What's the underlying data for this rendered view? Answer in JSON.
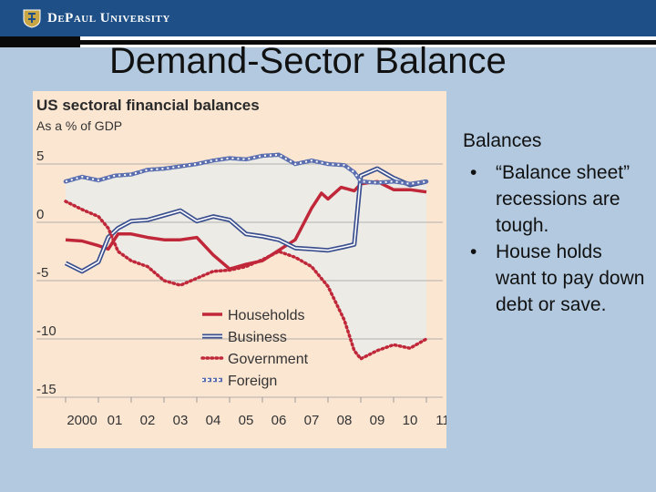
{
  "header": {
    "university_name": "DePaul University",
    "colors": {
      "bar": "#1e4f86",
      "stripe": "#0a0a0a"
    }
  },
  "slide": {
    "title": "Demand-Sector Balance",
    "side_heading": "Balances",
    "bullets": [
      "“Balance sheet” recessions are tough.",
      "House holds want to pay down debt or save."
    ]
  },
  "chart_data": {
    "type": "line",
    "title": "US sectoral financial balances",
    "subtitle": "As a % of GDP",
    "x_range": [
      2000,
      2011.5
    ],
    "ylim": [
      -15,
      5
    ],
    "y_ticks": [
      5,
      0,
      -5,
      -10,
      -15
    ],
    "x_tick_labels": [
      "2000",
      "01",
      "02",
      "03",
      "04",
      "05",
      "06",
      "07",
      "08",
      "09",
      "10",
      "11"
    ],
    "legend_position": "lower-center",
    "series": [
      {
        "name": "Households",
        "color": "#c0283a",
        "style": "solid",
        "points": [
          [
            2000,
            -1.5
          ],
          [
            2000.5,
            -1.6
          ],
          [
            2001,
            -2
          ],
          [
            2001.3,
            -2.3
          ],
          [
            2001.6,
            -1
          ],
          [
            2002,
            -1
          ],
          [
            2002.5,
            -1.3
          ],
          [
            2003,
            -1.5
          ],
          [
            2003.5,
            -1.5
          ],
          [
            2004,
            -1.3
          ],
          [
            2004.5,
            -2.8
          ],
          [
            2005,
            -4
          ],
          [
            2005.5,
            -3.6
          ],
          [
            2006,
            -3.3
          ],
          [
            2006.5,
            -2.4
          ],
          [
            2007,
            -1.5
          ],
          [
            2007.5,
            1.2
          ],
          [
            2007.8,
            2.5
          ],
          [
            2008,
            2
          ],
          [
            2008.4,
            3
          ],
          [
            2008.8,
            2.7
          ],
          [
            2009,
            3.3
          ],
          [
            2009.5,
            3.5
          ],
          [
            2010,
            2.8
          ],
          [
            2010.5,
            2.8
          ],
          [
            2011,
            2.6
          ]
        ]
      },
      {
        "name": "Business",
        "color": "#3b4f8f",
        "style": "double",
        "points": [
          [
            2000,
            -3.5
          ],
          [
            2000.5,
            -4.2
          ],
          [
            2001,
            -3.4
          ],
          [
            2001.3,
            -1.3
          ],
          [
            2001.6,
            -0.5
          ],
          [
            2002,
            0.1
          ],
          [
            2002.5,
            0.2
          ],
          [
            2003,
            0.6
          ],
          [
            2003.5,
            1
          ],
          [
            2004,
            0.1
          ],
          [
            2004.5,
            0.5
          ],
          [
            2005,
            0.2
          ],
          [
            2005.5,
            -1
          ],
          [
            2006,
            -1.2
          ],
          [
            2006.5,
            -1.5
          ],
          [
            2007,
            -2.2
          ],
          [
            2007.5,
            -2.3
          ],
          [
            2008,
            -2.4
          ],
          [
            2008.5,
            -2.1
          ],
          [
            2008.8,
            -1.9
          ],
          [
            2009,
            4
          ],
          [
            2009.5,
            4.6
          ],
          [
            2010,
            3.8
          ],
          [
            2010.5,
            3.2
          ],
          [
            2011,
            3.5
          ]
        ]
      },
      {
        "name": "Government",
        "color": "#c0283a",
        "style": "dotted",
        "points": [
          [
            2000,
            1.8
          ],
          [
            2000.5,
            1.1
          ],
          [
            2001,
            0.5
          ],
          [
            2001.3,
            -0.5
          ],
          [
            2001.6,
            -2.5
          ],
          [
            2002,
            -3.3
          ],
          [
            2002.5,
            -3.8
          ],
          [
            2003,
            -5
          ],
          [
            2003.5,
            -5.4
          ],
          [
            2004,
            -4.8
          ],
          [
            2004.5,
            -4.2
          ],
          [
            2005,
            -4.1
          ],
          [
            2005.5,
            -3.8
          ],
          [
            2006,
            -3.2
          ],
          [
            2006.5,
            -2.5
          ],
          [
            2007,
            -3
          ],
          [
            2007.5,
            -3.8
          ],
          [
            2008,
            -5.5
          ],
          [
            2008.5,
            -8.4
          ],
          [
            2008.8,
            -11
          ],
          [
            2009,
            -11.7
          ],
          [
            2009.5,
            -11
          ],
          [
            2010,
            -10.5
          ],
          [
            2010.5,
            -10.8
          ],
          [
            2011,
            -10
          ]
        ]
      },
      {
        "name": "Foreign",
        "color": "#5b6fb0",
        "style": "hollow-dots",
        "points": [
          [
            2000,
            3.5
          ],
          [
            2000.5,
            3.9
          ],
          [
            2001,
            3.6
          ],
          [
            2001.5,
            4
          ],
          [
            2002,
            4.1
          ],
          [
            2002.5,
            4.5
          ],
          [
            2003,
            4.6
          ],
          [
            2003.5,
            4.8
          ],
          [
            2004,
            5
          ],
          [
            2004.5,
            5.3
          ],
          [
            2005,
            5.5
          ],
          [
            2005.5,
            5.4
          ],
          [
            2006,
            5.7
          ],
          [
            2006.5,
            5.8
          ],
          [
            2007,
            5
          ],
          [
            2007.5,
            5.3
          ],
          [
            2008,
            5
          ],
          [
            2008.5,
            4.9
          ],
          [
            2008.8,
            4.3
          ],
          [
            2009,
            3.5
          ],
          [
            2009.5,
            3.4
          ],
          [
            2010,
            3.5
          ],
          [
            2010.5,
            3.3
          ],
          [
            2011,
            3.5
          ]
        ]
      }
    ]
  }
}
